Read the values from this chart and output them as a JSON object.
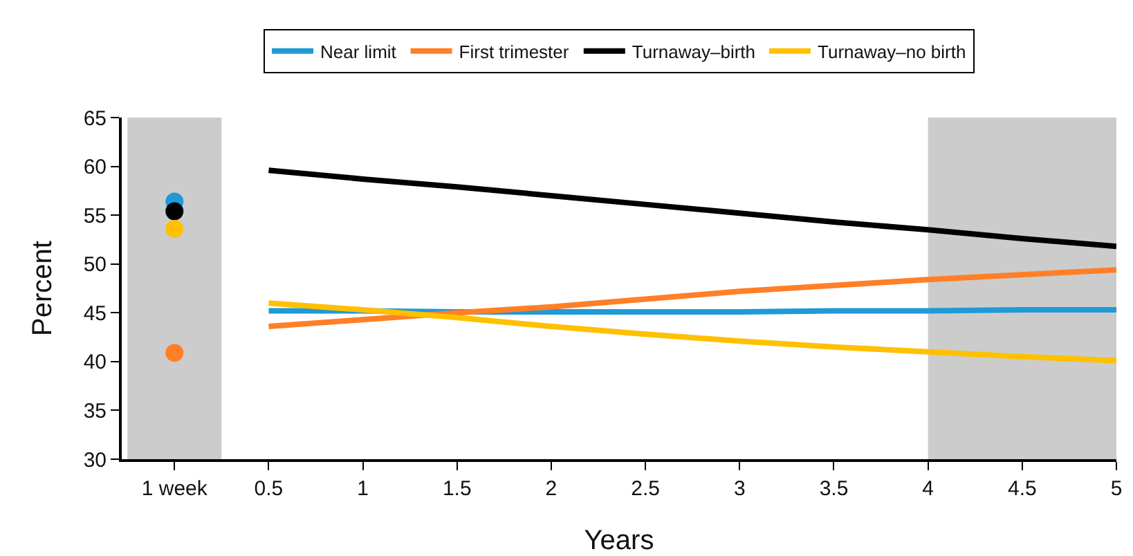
{
  "chart_data": {
    "type": "line",
    "xlabel": "Years",
    "ylabel": "Percent",
    "categories": [
      "1 week",
      "0.5",
      "1",
      "1.5",
      "2",
      "2.5",
      "3",
      "3.5",
      "4",
      "4.5",
      "5"
    ],
    "ylim": [
      30,
      65
    ],
    "yticks": [
      30,
      35,
      40,
      45,
      50,
      55,
      60,
      65
    ],
    "grid": false,
    "legend": "top",
    "marker": "none",
    "line_style": "solid",
    "bands": [
      {
        "axis": "x",
        "from": "1 week",
        "to": "1 week",
        "color": "#cccccc"
      },
      {
        "axis": "x",
        "from": "4",
        "to": "5",
        "color": "#cccccc"
      }
    ],
    "series": [
      {
        "name": "Near limit",
        "color": "#1f9ad6",
        "values": [
          null,
          45.2,
          45.2,
          45.1,
          45.1,
          45.1,
          45.1,
          45.2,
          45.2,
          45.3,
          45.3
        ]
      },
      {
        "name": "First trimester",
        "color": "#ff7f27",
        "values": [
          null,
          43.6,
          44.3,
          45.0,
          45.6,
          46.4,
          47.2,
          47.8,
          48.4,
          48.9,
          49.4
        ]
      },
      {
        "name": "Turnaway–birth",
        "color": "#000000",
        "values": [
          null,
          59.6,
          58.7,
          57.9,
          57.0,
          56.1,
          55.2,
          54.3,
          53.5,
          52.6,
          51.8
        ]
      },
      {
        "name": "Turnaway–no birth",
        "color": "#ffc000",
        "values": [
          null,
          46.0,
          45.3,
          44.5,
          43.6,
          42.8,
          42.1,
          41.5,
          41.0,
          40.5,
          40.1
        ]
      },
      {
        "type": "scatter",
        "marker": "circle",
        "color": "#1f9ad6",
        "values": [
          56.4,
          null,
          null,
          null,
          null,
          null,
          null,
          null,
          null,
          null,
          null
        ]
      },
      {
        "type": "scatter",
        "marker": "circle",
        "color": "#ff7f27",
        "values": [
          40.9,
          null,
          null,
          null,
          null,
          null,
          null,
          null,
          null,
          null,
          null
        ]
      },
      {
        "type": "scatter",
        "marker": "circle",
        "color": "#000000",
        "values": [
          55.4,
          null,
          null,
          null,
          null,
          null,
          null,
          null,
          null,
          null,
          null
        ]
      },
      {
        "type": "scatter",
        "marker": "circle",
        "color": "#ffc000",
        "values": [
          53.6,
          null,
          null,
          null,
          null,
          null,
          null,
          null,
          null,
          null,
          null
        ]
      }
    ]
  }
}
